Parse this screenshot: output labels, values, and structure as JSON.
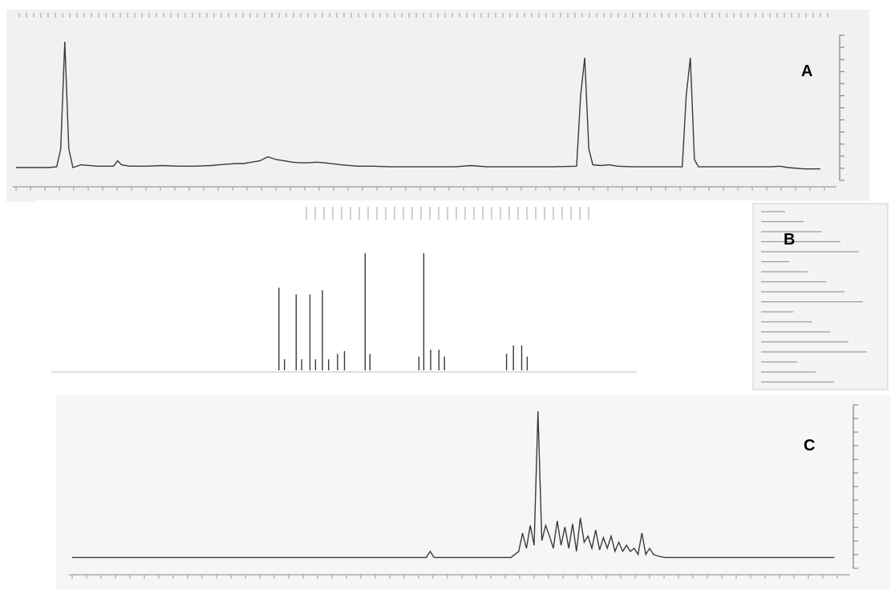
{
  "figure": {
    "panel_labels": [
      "A",
      "B",
      "C"
    ]
  },
  "chart_data": [
    {
      "panel": "A",
      "type": "line",
      "title": "",
      "xlabel": "",
      "ylabel": "",
      "xlim": [
        0,
        100
      ],
      "ylim": [
        0,
        100
      ],
      "grid": false,
      "series": [
        {
          "x": [
            0,
            1,
            2,
            3,
            4,
            5,
            5.5,
            6,
            6.5,
            7,
            8,
            10,
            12,
            12.5,
            13,
            14,
            16,
            18,
            20,
            22,
            24,
            25,
            26,
            27,
            28,
            29,
            30,
            31,
            32,
            33,
            34,
            35,
            36,
            37,
            38,
            40,
            42,
            44,
            46,
            50,
            54,
            55,
            56,
            58,
            62,
            66,
            69,
            69.5,
            70,
            70.5,
            71,
            72,
            73,
            74,
            76,
            78,
            80,
            82,
            82.5,
            83,
            83.5,
            84,
            86,
            88,
            90,
            92,
            93,
            94,
            95,
            97,
            99
          ],
          "y": [
            6,
            6,
            6,
            6,
            6,
            6.5,
            20,
            100,
            20,
            6,
            8,
            7,
            7,
            11,
            8,
            7,
            7,
            7.5,
            7,
            7,
            7.5,
            8,
            8.5,
            9,
            9,
            10,
            11,
            14,
            12,
            11,
            10,
            9.5,
            9.5,
            10,
            9.5,
            8,
            7,
            7,
            6.5,
            6.5,
            6.5,
            7,
            7.5,
            6.5,
            6.5,
            6.5,
            7,
            60,
            88,
            20,
            8,
            7.5,
            8,
            7,
            6.5,
            6.5,
            6.5,
            6.5,
            60,
            88,
            12,
            6.5,
            6.5,
            6.5,
            6.5,
            6.5,
            6.5,
            7,
            6,
            5,
            5
          ]
        }
      ]
    },
    {
      "panel": "B",
      "type": "bar",
      "title": "",
      "xlabel": "",
      "ylabel": "",
      "xlim": [
        0,
        100
      ],
      "ylim": [
        0,
        100
      ],
      "grid": false,
      "peaks": [
        {
          "x": 33.0,
          "y": 60
        },
        {
          "x": 33.8,
          "y": 8
        },
        {
          "x": 35.5,
          "y": 55
        },
        {
          "x": 36.3,
          "y": 8
        },
        {
          "x": 37.5,
          "y": 55
        },
        {
          "x": 38.3,
          "y": 8
        },
        {
          "x": 39.3,
          "y": 58
        },
        {
          "x": 40.2,
          "y": 8
        },
        {
          "x": 41.5,
          "y": 12
        },
        {
          "x": 42.5,
          "y": 14
        },
        {
          "x": 45.5,
          "y": 85
        },
        {
          "x": 46.2,
          "y": 12
        },
        {
          "x": 53.3,
          "y": 10
        },
        {
          "x": 54.0,
          "y": 85
        },
        {
          "x": 55.0,
          "y": 15
        },
        {
          "x": 56.2,
          "y": 15
        },
        {
          "x": 57.0,
          "y": 10
        },
        {
          "x": 66.0,
          "y": 12
        },
        {
          "x": 67.0,
          "y": 18
        },
        {
          "x": 68.2,
          "y": 18
        },
        {
          "x": 69.0,
          "y": 10
        }
      ]
    },
    {
      "panel": "C",
      "type": "line",
      "title": "",
      "xlabel": "",
      "ylabel": "",
      "xlim": [
        0,
        100
      ],
      "ylim": [
        0,
        100
      ],
      "grid": false,
      "series": [
        {
          "x": [
            0,
            10,
            20,
            30,
            40,
            46,
            46.5,
            47,
            50,
            57,
            58,
            58.5,
            59,
            59.5,
            60,
            60.5,
            61,
            61.5,
            62,
            62.5,
            63,
            63.5,
            64,
            64.5,
            65,
            65.5,
            66,
            66.5,
            67,
            67.5,
            68,
            68.5,
            69,
            69.5,
            70,
            70.5,
            71,
            71.5,
            72,
            72.5,
            73,
            73.5,
            74,
            74.5,
            75,
            75.5,
            76,
            77,
            80,
            90,
            99
          ],
          "y": [
            4,
            4,
            4,
            4,
            4,
            4,
            8,
            4,
            4,
            4,
            8,
            20,
            10,
            25,
            12,
            100,
            15,
            25,
            18,
            10,
            28,
            12,
            24,
            10,
            26,
            8,
            30,
            14,
            18,
            10,
            22,
            9,
            17,
            10,
            18,
            8,
            14,
            8,
            12,
            8,
            10,
            6,
            20,
            6,
            10,
            6,
            5,
            4,
            4,
            4,
            4
          ]
        }
      ]
    }
  ]
}
